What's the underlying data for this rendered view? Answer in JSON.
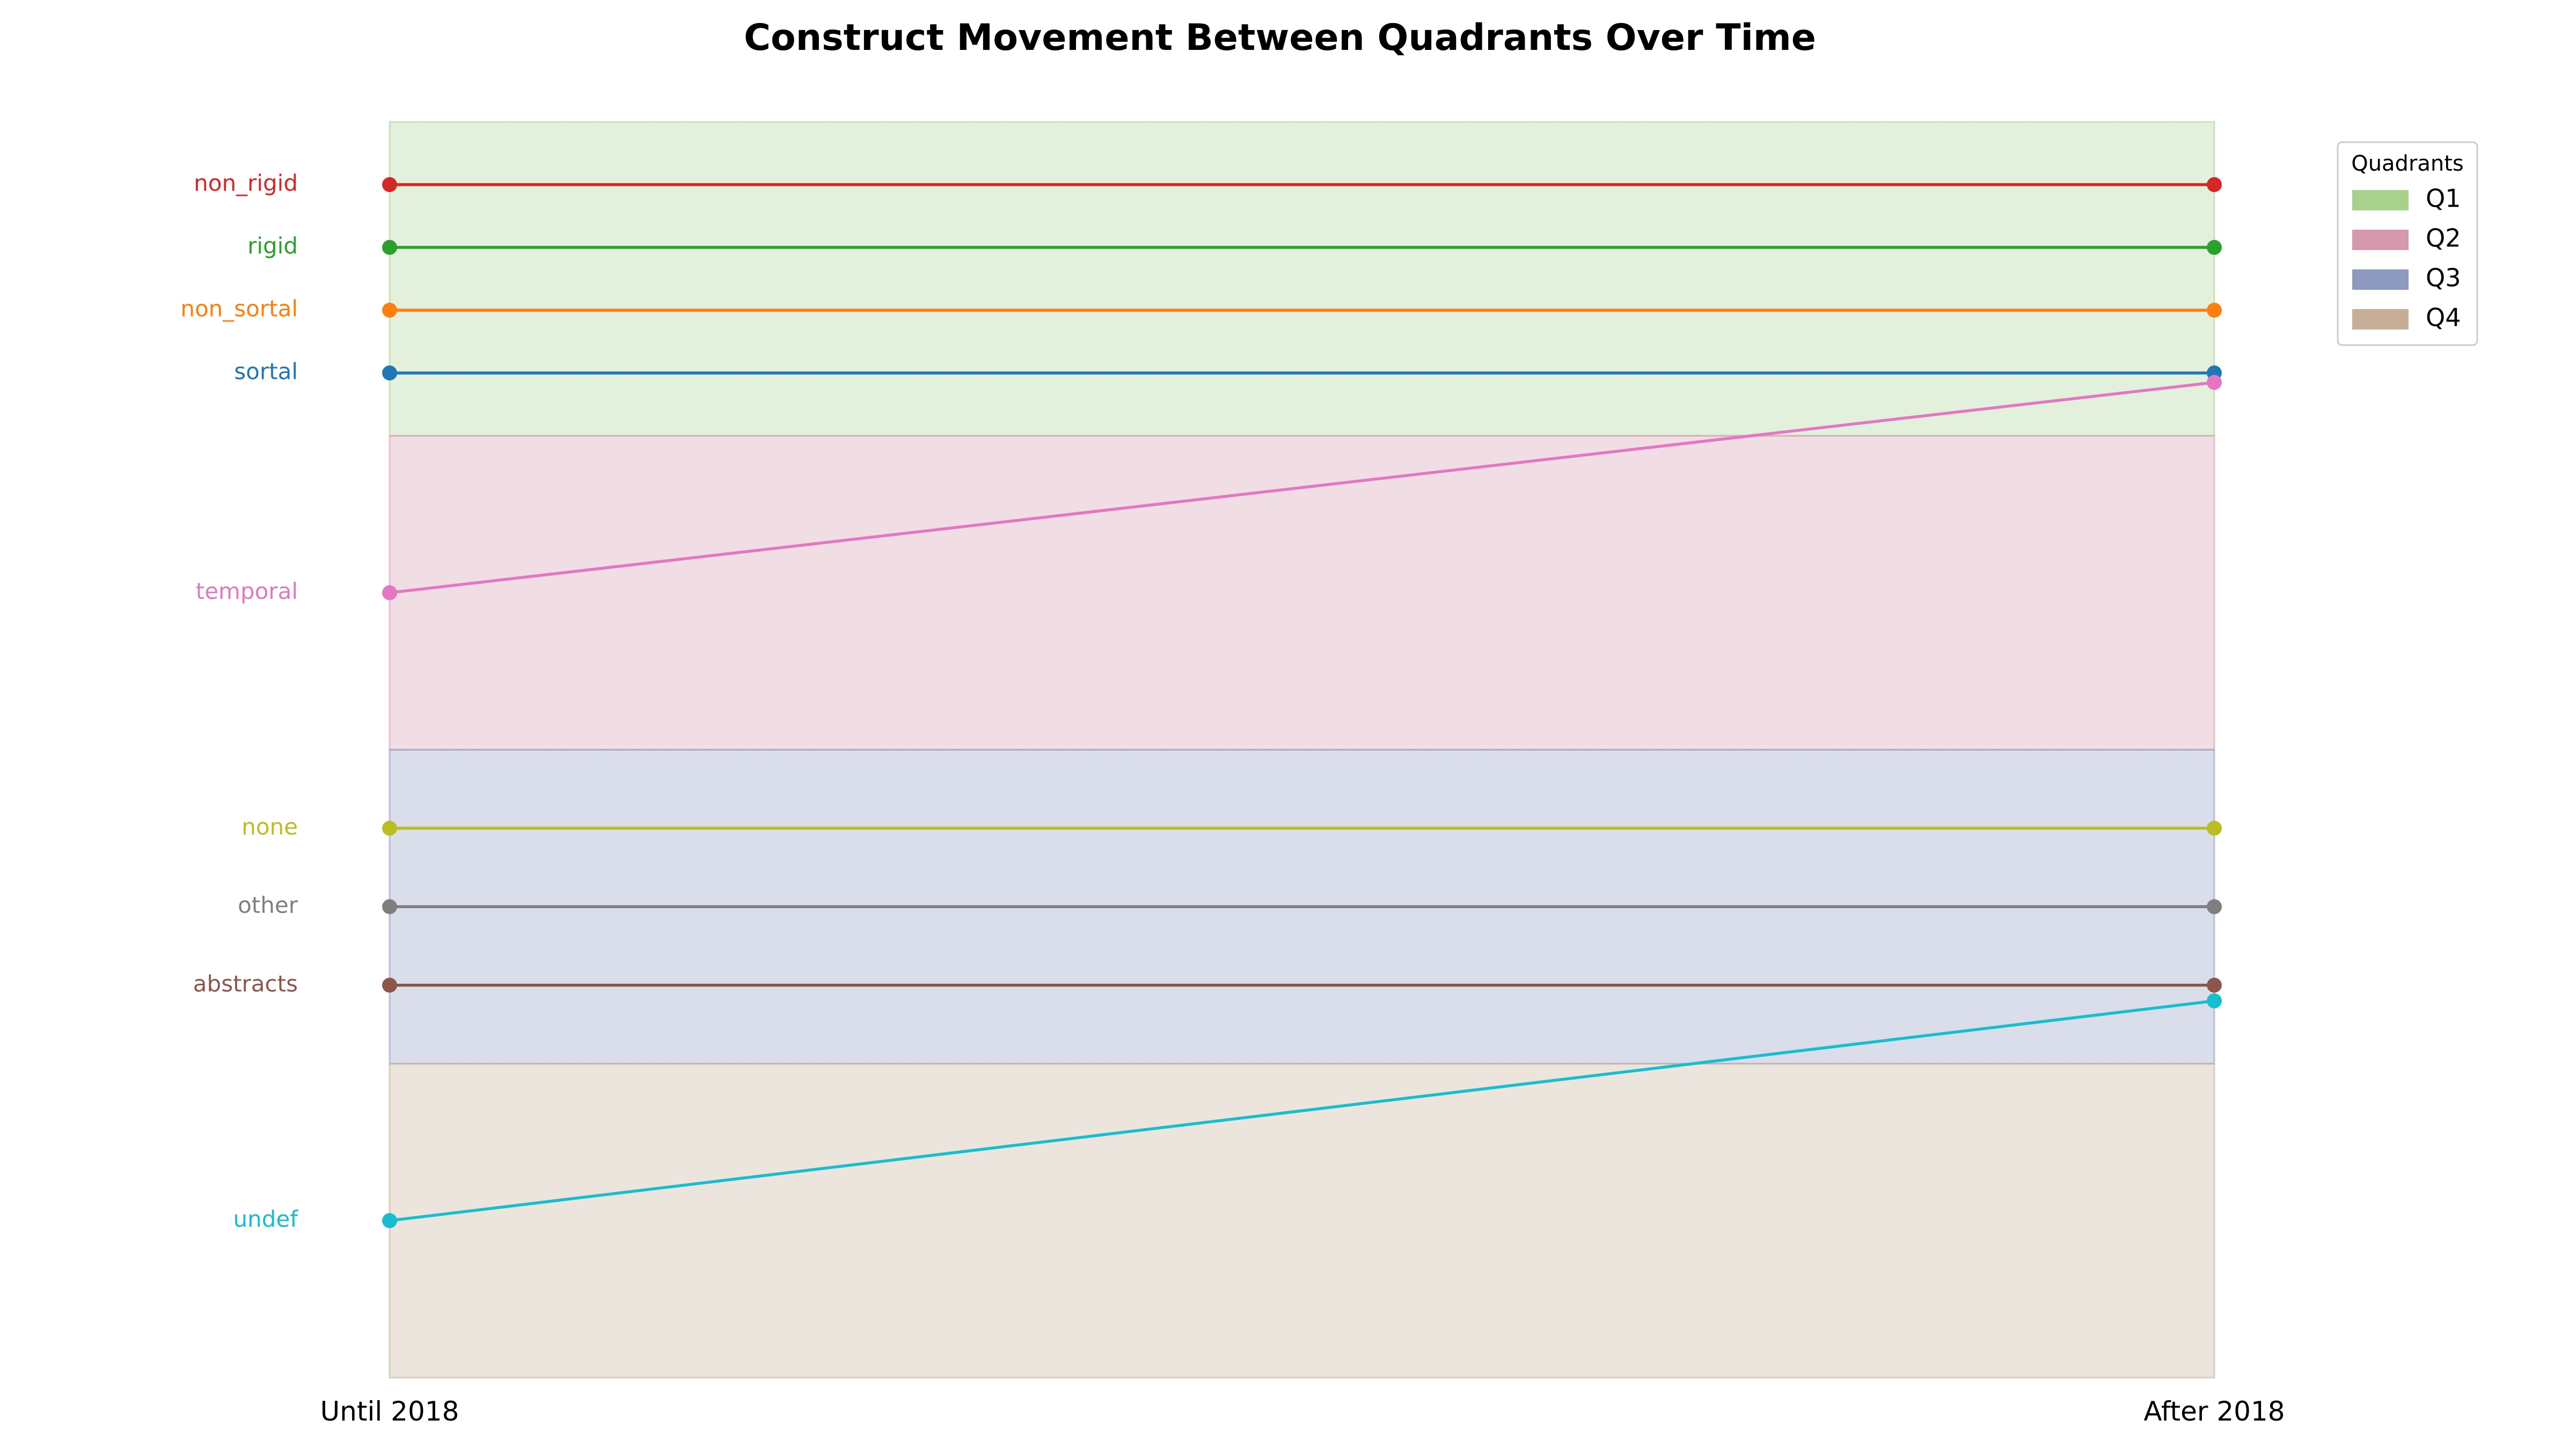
{
  "chart_data": {
    "type": "line",
    "title": "Construct Movement Between Quadrants Over Time",
    "x": [
      "Until 2018",
      "After 2018"
    ],
    "quadrants": [
      {
        "name": "Q1",
        "color": "#a9d18e",
        "range": [
          3,
          4
        ]
      },
      {
        "name": "Q2",
        "color": "#d598ad",
        "range": [
          2,
          3
        ]
      },
      {
        "name": "Q3",
        "color": "#8d99bf",
        "range": [
          1,
          2
        ]
      },
      {
        "name": "Q4",
        "color": "#c5ad97",
        "range": [
          0,
          1
        ]
      }
    ],
    "ylim": [
      0,
      4
    ],
    "legend": {
      "title": "Quadrants",
      "placement": "top-right"
    },
    "series": [
      {
        "name": "non_rigid",
        "color": "#d62728",
        "values": [
          3.8,
          3.8
        ]
      },
      {
        "name": "rigid",
        "color": "#2ca02c",
        "values": [
          3.6,
          3.6
        ]
      },
      {
        "name": "non_sortal",
        "color": "#ff7f0e",
        "values": [
          3.4,
          3.4
        ]
      },
      {
        "name": "sortal",
        "color": "#1f77b4",
        "values": [
          3.2,
          3.2
        ]
      },
      {
        "name": "temporal",
        "color": "#e377c2",
        "values": [
          2.5,
          3.17
        ]
      },
      {
        "name": "none",
        "color": "#bcbd22",
        "values": [
          1.75,
          1.75
        ]
      },
      {
        "name": "other",
        "color": "#7f7f7f",
        "values": [
          1.5,
          1.5
        ]
      },
      {
        "name": "abstracts",
        "color": "#8c564b",
        "values": [
          1.25,
          1.25
        ]
      },
      {
        "name": "undef",
        "color": "#17becf",
        "values": [
          0.5,
          1.2
        ]
      }
    ]
  }
}
